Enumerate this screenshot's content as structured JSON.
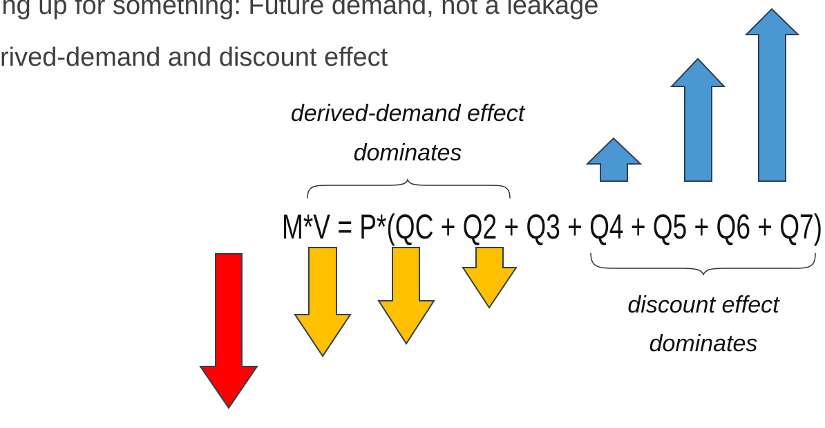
{
  "slide": {
    "title_lines": [
      "ing up for something: Future demand, not a leakage",
      "rived-demand and discount effect"
    ],
    "upper_label": [
      "derived-demand effect",
      "dominates"
    ],
    "equation": "M*V = P*(QC + Q2 + Q3 + Q4 + Q5 + Q6 + Q7)",
    "lower_label": [
      "discount effect",
      "dominates"
    ]
  }
}
